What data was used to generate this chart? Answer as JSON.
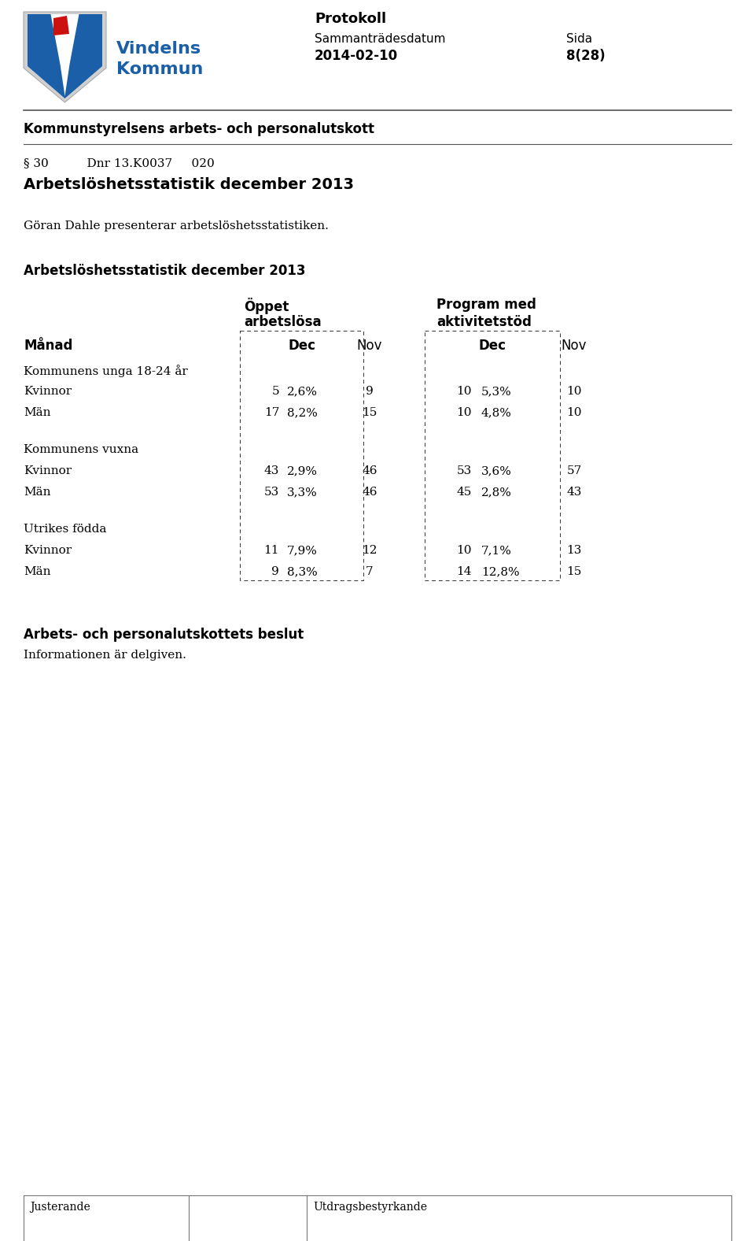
{
  "page_title": "Protokoll",
  "sammantr": "Sammanträdesdatum",
  "sida_label": "Sida",
  "date": "2014-02-10",
  "sida": "8(28)",
  "header_line": "Kommunstyrelsens arbets- och personalutskott",
  "paragraph": "§ 30          Dnr 13.K0037     020",
  "main_title": "Arbetslöshetsstatistik december 2013",
  "intro_text": "Göran Dahle presenterar arbetslöshetsstatistiken.",
  "table_title": "Arbetslöshetsstatistik december 2013",
  "col_header1_line1": "Öppet",
  "col_header1_line2": "arbetslösa",
  "col_header2_line1": "Program med",
  "col_header2_line2": "aktivitetstöd",
  "row_header": "Månad",
  "col_dec": "Dec",
  "col_nov": "Nov",
  "group1_label": "Kommunens unga 18-24 år",
  "group1_row1_label": "Kvinnor",
  "group1_row1": [
    "5",
    "2,6%",
    "9",
    "10",
    "5,3%",
    "10"
  ],
  "group1_row2_label": "Män",
  "group1_row2": [
    "17",
    "8,2%",
    "15",
    "10",
    "4,8%",
    "10"
  ],
  "group2_label": "Kommunens vuxna",
  "group2_row1_label": "Kvinnor",
  "group2_row1": [
    "43",
    "2,9%",
    "46",
    "53",
    "3,6%",
    "57"
  ],
  "group2_row2_label": "Män",
  "group2_row2": [
    "53",
    "3,3%",
    "46",
    "45",
    "2,8%",
    "43"
  ],
  "group3_label": "Utrikes födda",
  "group3_row1_label": "Kvinnor",
  "group3_row1": [
    "11",
    "7,9%",
    "12",
    "10",
    "7,1%",
    "13"
  ],
  "group3_row2_label": "Män",
  "group3_row2": [
    "9",
    "8,3%",
    "7",
    "14",
    "12,8%",
    "15"
  ],
  "beslut_title": "Arbets- och personalutskottets beslut",
  "beslut_text": "Informationen är delgiven.",
  "justerande": "Justerande",
  "utdragsbestyrk": "Utdragsbestyrkande"
}
